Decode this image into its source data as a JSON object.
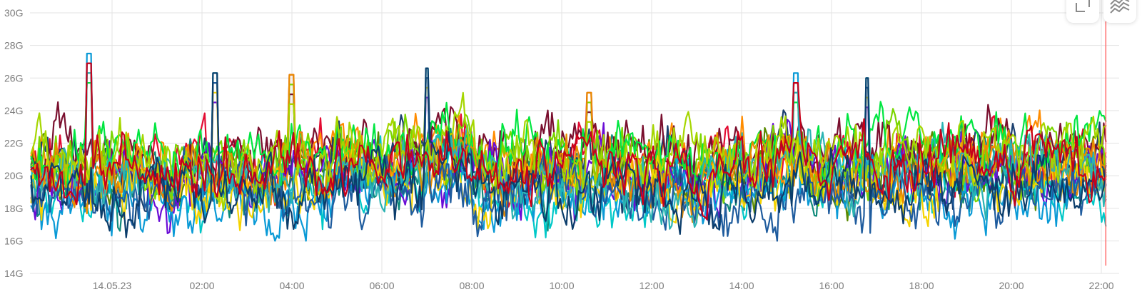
{
  "toolbar": {
    "fullscreen_icon": "expand-icon",
    "chart_type_icon": "area-chart-icon"
  },
  "chart_data": {
    "type": "line",
    "title": "",
    "xlabel": "",
    "ylabel": "",
    "y_tick_labels": [
      "14G",
      "16G",
      "18G",
      "20G",
      "22G",
      "24G",
      "26G",
      "28G",
      "30G"
    ],
    "ylim": [
      14,
      30
    ],
    "x_tick_labels": [
      "14.05.23",
      "02:00",
      "04:00",
      "06:00",
      "08:00",
      "10:00",
      "12:00",
      "14:00",
      "16:00",
      "18:00",
      "20:00",
      "22:00"
    ],
    "x_ticks_hours": [
      0,
      2,
      4,
      6,
      8,
      10,
      12,
      14,
      16,
      18,
      20,
      22
    ],
    "xlim_hours": [
      -1.8,
      22.1
    ],
    "grid": true,
    "legend": "none",
    "marker_hour": 22.1,
    "marker_color": "#ff6b6b",
    "series_baselines": [
      20.5,
      20.0,
      19.5,
      21.0,
      19.0,
      20.2,
      21.2,
      19.8,
      18.7,
      20.6,
      19.3,
      21.5,
      20.1,
      18.5,
      19.7,
      20.9,
      18.9,
      20.3
    ],
    "series_colors": [
      "#e30b32",
      "#5a8a00",
      "#0f8a7a",
      "#ff8c00",
      "#00c8c8",
      "#1a3f6e",
      "#7a0f2e",
      "#6a0dd6",
      "#0a9ad6",
      "#7bd600",
      "#f5d300",
      "#00e640",
      "#e88b00",
      "#1f5c9e",
      "#2bb3b3",
      "#a5d600",
      "#0b3d6b",
      "#c7001a"
    ],
    "events": [
      {
        "hour": -1.8,
        "type": "shift",
        "amount": 1.2
      },
      {
        "hour": -0.5,
        "type": "spike",
        "value": 27.5
      },
      {
        "hour": 2.3,
        "type": "spike",
        "value": 26.3
      },
      {
        "hour": 4.0,
        "type": "spike",
        "value": 26.2
      },
      {
        "hour": 5.0,
        "type": "shift",
        "amount": 1.8
      },
      {
        "hour": 7.0,
        "type": "spike",
        "value": 26.6
      },
      {
        "hour": 10.6,
        "type": "spike",
        "value": 25.1
      },
      {
        "hour": 15.2,
        "type": "spike",
        "value": 26.3
      },
      {
        "hour": 16.8,
        "type": "spike",
        "value": 26.0
      }
    ]
  }
}
